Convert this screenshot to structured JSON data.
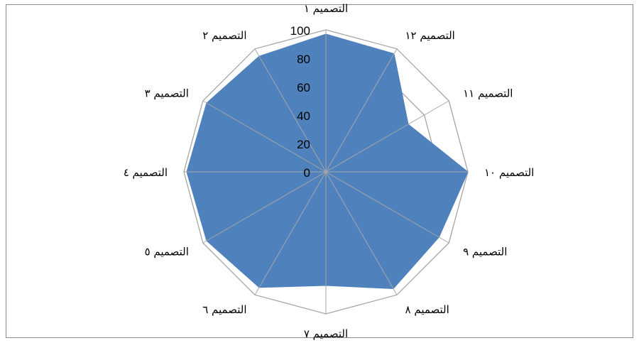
{
  "chart_data": {
    "type": "radar",
    "title": "",
    "categories": [
      "التصميم ١",
      "التصميم ١٢",
      "التصميم ١١",
      "التصميم ١٠",
      "التصميم ٩",
      "التصميم ٨",
      "التصميم ٧",
      "التصميم ٦",
      "التصميم ٥",
      "التصميم ٤",
      "التصميم ٣",
      "التصميم ٢"
    ],
    "series": [
      {
        "values": [
          97,
          96,
          67,
          100,
          92,
          95,
          80,
          94,
          97,
          98,
          97,
          94
        ]
      }
    ],
    "ylim": [
      0,
      100
    ],
    "yticks": [
      0,
      20,
      40,
      60,
      80,
      100
    ],
    "grid": true,
    "legend": "none",
    "colors": {
      "fill": "#4f81bd",
      "grid": "#a6a6a6",
      "frame": "#8c8c8c"
    }
  }
}
